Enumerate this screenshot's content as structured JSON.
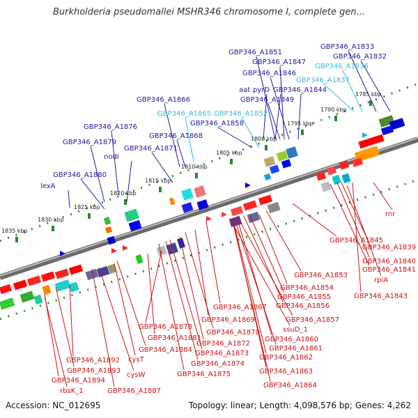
{
  "title": "Burkholderia pseudomallei MSHR346 chromosome I, complete gen...",
  "footer": {
    "accession": "Accession: NC_012695",
    "topology": "Topology: linear; Length: 4,098,576 bp; Genes: 4,262"
  },
  "colors": {
    "backbone": "#808080",
    "top_label": "#1a1a9c",
    "top_label_light": "#33bbdd",
    "bottom_label": "#cc1111",
    "tick": "#228822"
  },
  "ticks": [
    "1785 kbp",
    "1790 kbp",
    "1795 kbp",
    "1800 kbp",
    "1805 kbp",
    "1810 kbp",
    "1815 kbp",
    "1820 kbp",
    "1825 kbp",
    "1830 kbp",
    "1835 kbp"
  ],
  "top_labels": [
    {
      "text": "GBP346_A1833",
      "light": false
    },
    {
      "text": "GBP346_A1832",
      "light": false
    },
    {
      "text": "GBP346_A1836",
      "light": true
    },
    {
      "text": "GBP346_A1851",
      "light": false
    },
    {
      "text": "GBP346_A1847",
      "light": false
    },
    {
      "text": "GBP346_A1846",
      "light": false
    },
    {
      "text": "GBP346_A1837",
      "light": true
    },
    {
      "text": "aat",
      "light": false
    },
    {
      "text": "pyrD",
      "light": false
    },
    {
      "text": "GBP346_A1844",
      "light": false
    },
    {
      "text": "GBP346_A1866",
      "light": false
    },
    {
      "text": "GBP346_A1849",
      "light": false
    },
    {
      "text": "GBP346_A1865",
      "light": true
    },
    {
      "text": "GBP346_A1852",
      "light": true
    },
    {
      "text": "GBP346_A1858",
      "light": false
    },
    {
      "text": "GBP346_A1876",
      "light": false
    },
    {
      "text": "GBP346_A1868",
      "light": false
    },
    {
      "text": "GBP346_A1879",
      "light": false
    },
    {
      "text": "GBP346_A1871",
      "light": false
    },
    {
      "text": "nodI",
      "light": false
    },
    {
      "text": "GBP346_A1880",
      "light": false
    },
    {
      "text": "lexA",
      "light": false
    }
  ],
  "bottom_labels": [
    "rnr",
    "GBP346_A1845",
    "GBP346_A1839",
    "GBP346_A1840",
    "GBP346_A1841",
    "rpiA",
    "GBP346_A1843",
    "GBP346_A1853",
    "GBP346_A1854",
    "GBP346_A1855",
    "GBP346_A1856",
    "GBP346_A1867",
    "GBP346_A1857",
    "GBP346_A1869",
    "ssuD_1",
    "GBP346_A1878",
    "GBP346_A1870",
    "GBP346_A1881",
    "GBP346_A1860",
    "GBP346_A1884",
    "GBP346_A1872",
    "GBP346_A1861",
    "cysT",
    "GBP346_A1873",
    "GBP346_A1862",
    "GBP346_A1892",
    "GBP346_A1874",
    "GBP346_A1893",
    "GBP346_A1875",
    "GBP346_A1863",
    "cysW",
    "GBP346_A1894",
    "rbsK_1",
    "GBP346_A1864",
    "GBP346_A1887"
  ]
}
